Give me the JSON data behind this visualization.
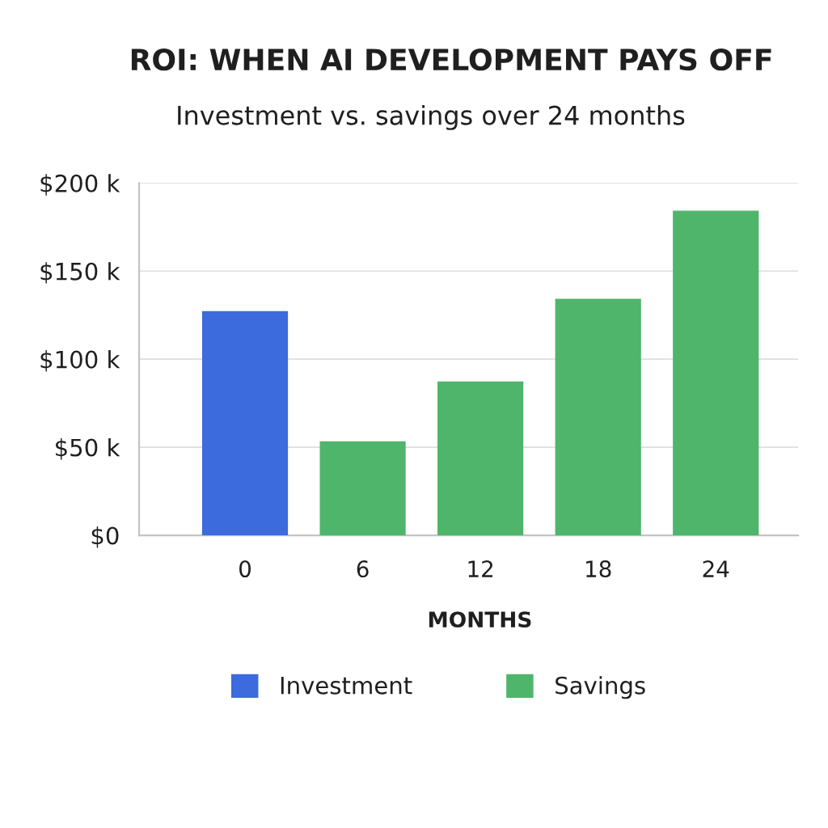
{
  "chart_data": {
    "type": "bar",
    "title": "ROI: WHEN AI DEVELOPMENT PAYS OFF",
    "subtitle": "Investment vs. savings over 24 months",
    "xlabel": "MONTHS",
    "categories": [
      "0",
      "6",
      "12",
      "18",
      "24"
    ],
    "series": [
      {
        "name": "Investment",
        "color": "#3b6bdc",
        "values": [
          127,
          null,
          null,
          null,
          null
        ]
      },
      {
        "name": "Savings",
        "color": "#4fb56b",
        "values": [
          null,
          53,
          87,
          134,
          184
        ]
      }
    ],
    "ylim": [
      0,
      200
    ],
    "yticks": [
      {
        "value": 0,
        "label": "$0"
      },
      {
        "value": 50,
        "label": "$50 k"
      },
      {
        "value": 100,
        "label": "$100 k"
      },
      {
        "value": 150,
        "label": "$150 k"
      },
      {
        "value": 200,
        "label": "$200 k"
      }
    ],
    "grid": "y",
    "legend": "bottom"
  }
}
